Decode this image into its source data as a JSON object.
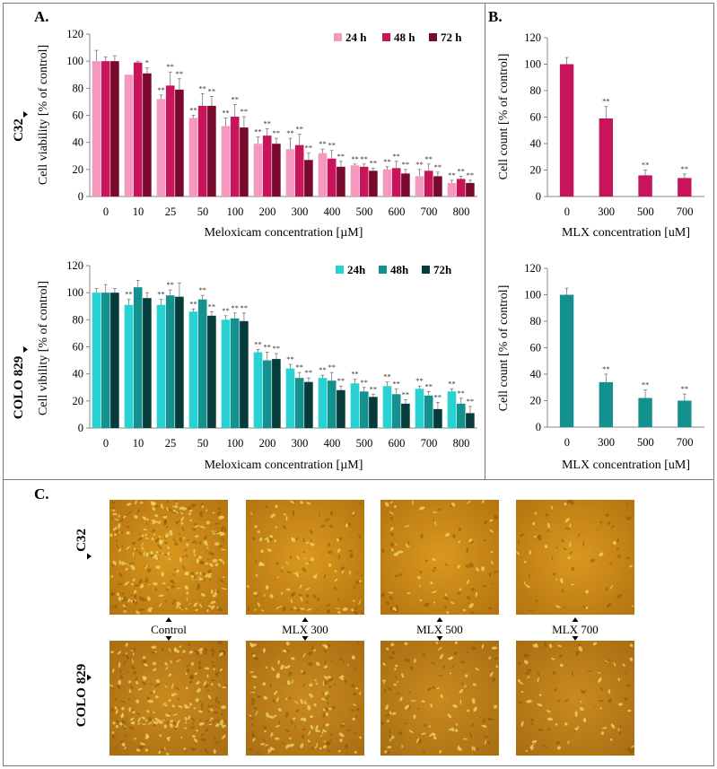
{
  "panels": {
    "A": "A.",
    "B": "B.",
    "C": "C."
  },
  "cell_lines": [
    "C32",
    "COLO 829"
  ],
  "colors": {
    "c32": [
      "#f598be",
      "#c8145a",
      "#7a0a2d"
    ],
    "colo": [
      "#28d2d2",
      "#12918f",
      "#063c3c"
    ],
    "photo_base": "#c98a1e",
    "photo_dark": "#9a6410"
  },
  "chart_data": [
    {
      "id": "A-C32",
      "type": "bar",
      "xlabel": "Meloxicam concentration [µM]",
      "ylabel": "Cell viability [% of control]",
      "ylim": [
        0,
        120
      ],
      "yticks": [
        0,
        20,
        40,
        60,
        80,
        100,
        120
      ],
      "categories": [
        "0",
        "10",
        "25",
        "50",
        "100",
        "200",
        "300",
        "400",
        "500",
        "600",
        "700",
        "800"
      ],
      "legend": "top-right",
      "series": [
        {
          "name": "24 h",
          "values": [
            100,
            90,
            72,
            58,
            52,
            39,
            35,
            32,
            23,
            20,
            15,
            10
          ],
          "errors": [
            8,
            0,
            3,
            2,
            6,
            5,
            8,
            3,
            1,
            2,
            5,
            2
          ],
          "sig": [
            "",
            "",
            "**",
            "**",
            "**",
            "**",
            "**",
            "**",
            "**",
            "**",
            "**",
            "**"
          ]
        },
        {
          "name": "48 h",
          "values": [
            100,
            99,
            82,
            67,
            59,
            45,
            38,
            28,
            22,
            21,
            19,
            13
          ],
          "errors": [
            3,
            1,
            10,
            9,
            9,
            5,
            8,
            6,
            2,
            5,
            5,
            2
          ],
          "sig": [
            "",
            "",
            "**",
            "**",
            "**",
            "**",
            "**",
            "**",
            "**",
            "**",
            "**",
            "**"
          ]
        },
        {
          "name": "72 h",
          "values": [
            100,
            91,
            79,
            67,
            51,
            39,
            27,
            22,
            19,
            17,
            15,
            10
          ],
          "errors": [
            4,
            4,
            8,
            7,
            8,
            4,
            5,
            4,
            2,
            3,
            3,
            2
          ],
          "sig": [
            "",
            "*",
            "**",
            "**",
            "**",
            "**",
            "**",
            "**",
            "**",
            "**",
            "**",
            "**"
          ]
        }
      ]
    },
    {
      "id": "B-C32",
      "type": "bar",
      "xlabel": "MLX concentration [uM]",
      "ylabel": "Cell count [% of control]",
      "ylim": [
        0,
        120
      ],
      "yticks": [
        0,
        20,
        40,
        60,
        80,
        100,
        120
      ],
      "categories": [
        "0",
        "300",
        "500",
        "700"
      ],
      "series": [
        {
          "values": [
            100,
            59,
            16,
            14
          ],
          "errors": [
            5,
            9,
            4,
            3
          ],
          "sig": [
            "",
            "**",
            "**",
            "**"
          ]
        }
      ]
    },
    {
      "id": "A-COLO829",
      "type": "bar",
      "xlabel": "Meloxicam concentration [µM]",
      "ylabel": "Cell vibility [% of control]",
      "ylim": [
        0,
        120
      ],
      "yticks": [
        0,
        20,
        40,
        60,
        80,
        100,
        120
      ],
      "categories": [
        "0",
        "10",
        "25",
        "50",
        "100",
        "200",
        "300",
        "400",
        "500",
        "600",
        "700",
        "800"
      ],
      "legend": "top-right",
      "series": [
        {
          "name": "24h",
          "values": [
            100,
            91,
            91,
            86,
            80,
            56,
            44,
            37,
            33,
            31,
            29,
            27
          ],
          "errors": [
            3,
            4,
            4,
            2,
            3,
            2,
            3,
            2,
            3,
            3,
            2,
            2
          ],
          "sig": [
            "",
            "**",
            "**",
            "**",
            "**",
            "**",
            "**",
            "**",
            "**",
            "**",
            "**",
            "**"
          ]
        },
        {
          "name": "48h",
          "values": [
            100,
            104,
            98,
            95,
            81,
            50,
            37,
            35,
            27,
            25,
            24,
            18
          ],
          "errors": [
            6,
            5,
            4,
            3,
            4,
            6,
            4,
            6,
            3,
            4,
            3,
            4
          ],
          "sig": [
            "",
            "",
            "**",
            "**",
            "**",
            "**",
            "**",
            "**",
            "**",
            "**",
            "**",
            "**"
          ]
        },
        {
          "name": "72h",
          "values": [
            100,
            96,
            97,
            83,
            79,
            51,
            34,
            28,
            23,
            18,
            14,
            11
          ],
          "errors": [
            3,
            4,
            10,
            3,
            6,
            4,
            3,
            3,
            2,
            3,
            5,
            5
          ],
          "sig": [
            "",
            "",
            "",
            "**",
            "**",
            "**",
            "**",
            "**",
            "**",
            "**",
            "**",
            "**"
          ]
        }
      ]
    },
    {
      "id": "B-COLO829",
      "type": "bar",
      "xlabel": "MLX concentration [uM]",
      "ylabel": "Cell count [% of control]",
      "ylim": [
        0,
        120
      ],
      "yticks": [
        0,
        20,
        40,
        60,
        80,
        100,
        120
      ],
      "categories": [
        "0",
        "300",
        "500",
        "700"
      ],
      "series": [
        {
          "values": [
            100,
            34,
            22,
            20
          ],
          "errors": [
            5,
            6,
            6,
            5
          ],
          "sig": [
            "",
            "**",
            "**",
            "**"
          ]
        }
      ]
    }
  ],
  "micrographs": {
    "conditions": [
      "Control",
      "MLX 300",
      "MLX 500",
      "MLX 700"
    ],
    "rows": [
      "C32",
      "COLO 829"
    ]
  }
}
